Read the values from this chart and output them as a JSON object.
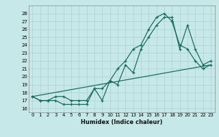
{
  "xlabel": "Humidex (Indice chaleur)",
  "bg_color": "#c6e8e8",
  "grid_color": "#aed4d4",
  "line_color": "#1a6b5a",
  "xlim": [
    -0.5,
    23.5
  ],
  "ylim": [
    15.5,
    29
  ],
  "yticks": [
    16,
    17,
    18,
    19,
    20,
    21,
    22,
    23,
    24,
    25,
    26,
    27,
    28
  ],
  "xticks": [
    0,
    1,
    2,
    3,
    4,
    5,
    6,
    7,
    8,
    9,
    10,
    11,
    12,
    13,
    14,
    15,
    16,
    17,
    18,
    19,
    20,
    21,
    22,
    23
  ],
  "series1_x": [
    0,
    1,
    2,
    3,
    4,
    5,
    6,
    7,
    8,
    9,
    10,
    11,
    12,
    13,
    14,
    15,
    16,
    17,
    18,
    19,
    20,
    21,
    22,
    23
  ],
  "series1_y": [
    17.5,
    17.0,
    17.0,
    17.0,
    16.5,
    16.5,
    16.5,
    16.5,
    18.5,
    17.0,
    19.5,
    19.0,
    21.5,
    20.5,
    23.5,
    25.0,
    26.5,
    27.5,
    27.5,
    23.5,
    26.5,
    23.5,
    21.5,
    22.0
  ],
  "series2_x": [
    0,
    1,
    2,
    3,
    4,
    5,
    6,
    7,
    8,
    9,
    10,
    11,
    12,
    13,
    14,
    15,
    16,
    17,
    18,
    19,
    20,
    21,
    22,
    23
  ],
  "series2_y": [
    17.5,
    17.0,
    17.0,
    17.5,
    17.5,
    17.0,
    17.0,
    17.0,
    18.5,
    18.5,
    19.5,
    21.0,
    22.0,
    23.5,
    24.0,
    26.0,
    27.5,
    28.0,
    27.0,
    24.0,
    23.5,
    22.0,
    21.0,
    21.5
  ],
  "series3_x": [
    0,
    23
  ],
  "series3_y": [
    17.5,
    21.5
  ]
}
